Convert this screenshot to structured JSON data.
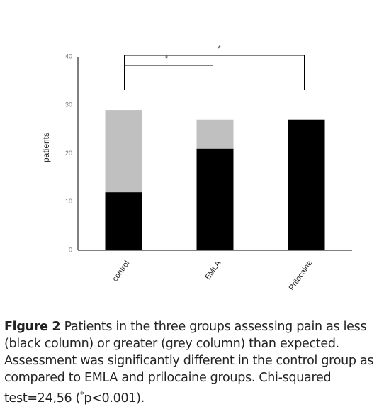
{
  "chart_data": {
    "type": "stacked_bar",
    "y_label": "patients",
    "categories": [
      "control",
      "EMLA",
      "Prilocaine"
    ],
    "series": [
      {
        "color": "#000000",
        "values": [
          12,
          21,
          27
        ]
      },
      {
        "color": "#c0c0c0",
        "values": [
          17,
          6,
          0
        ]
      }
    ],
    "ylim": [
      0,
      40
    ],
    "yticks": [
      0,
      10,
      20,
      30,
      40
    ],
    "grid": false,
    "annotations": [
      "*",
      "*"
    ]
  },
  "caption": {
    "label": "Figure 2",
    "text": "Patients in the three groups assessing pain as less (black column) or greater (grey column) than expected. Assessment was significantly different in the control group as compared to EMLA and prilocaine groups. Chi-squared test=24,56 (",
    "sup": "*",
    "end": "p<0.001)."
  }
}
